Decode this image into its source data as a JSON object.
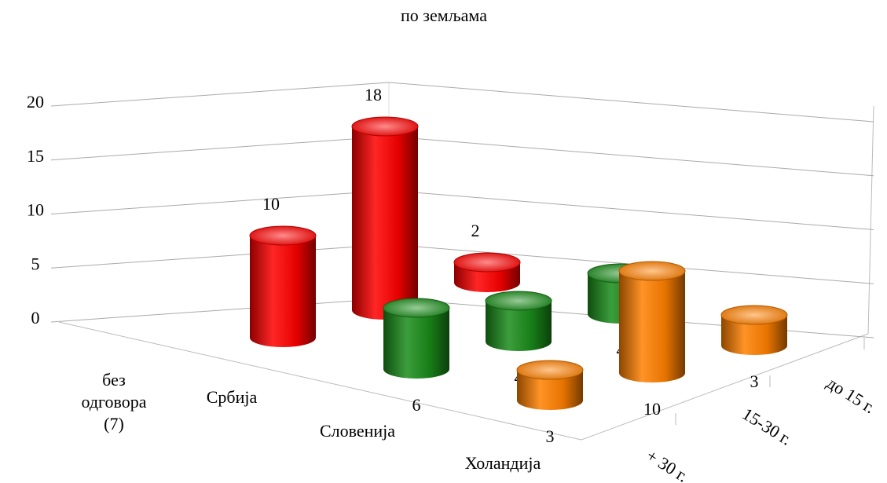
{
  "chart_data": {
    "type": "bar3d",
    "title": "по земљама",
    "categories": [
      "без одговора (7)",
      "Србија",
      "Словенија",
      "Холандија"
    ],
    "series": [
      {
        "name": "до 15 г.",
        "color": "#ff0000",
        "values": [
          null,
          10,
          18,
          2
        ]
      },
      {
        "name": "15-30 г.",
        "color": "#1a8c1a",
        "values": [
          null,
          6,
          4,
          4
        ]
      },
      {
        "name": "+ 30 г.",
        "color": "#ff8000",
        "values": [
          null,
          3,
          10,
          3
        ]
      }
    ],
    "ylim": [
      0,
      20
    ],
    "yticks": [
      0,
      5,
      10,
      15,
      20
    ],
    "grid": true
  }
}
